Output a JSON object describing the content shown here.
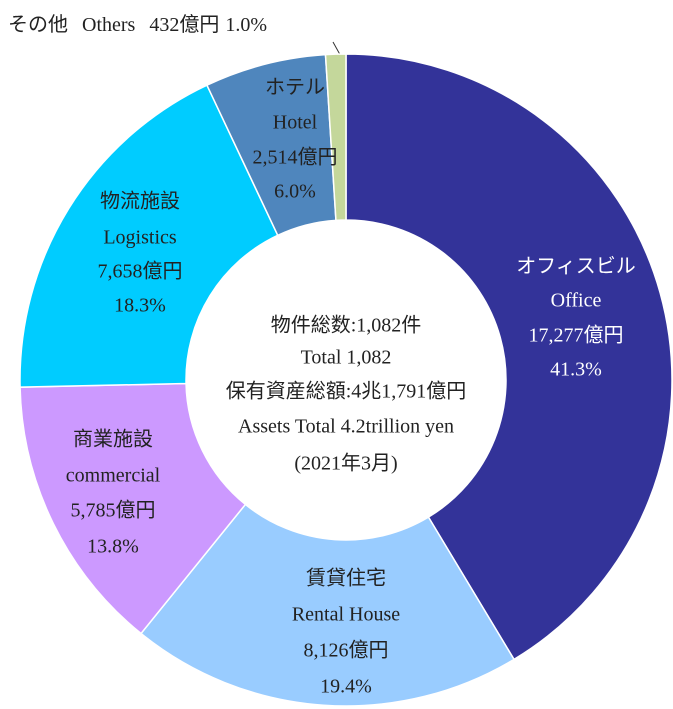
{
  "chart_data": {
    "type": "donut",
    "categories": [
      "オフィスビル",
      "賃貸住宅",
      "商業施設",
      "物流施設",
      "ホテル",
      "その他"
    ],
    "categories_en": [
      "Office",
      "Rental House",
      "commercial",
      "Logistics",
      "Hotel",
      "Others"
    ],
    "amount_labels": [
      "17,277億円",
      "8,126億円",
      "5,785億円",
      "7,658億円",
      "2,514億円",
      "432億円"
    ],
    "values": [
      41.3,
      19.4,
      13.8,
      18.3,
      6.0,
      1.0
    ],
    "value_labels": [
      "41.3%",
      "19.4%",
      "13.8%",
      "18.3%",
      "6.0%",
      "1.0%"
    ],
    "colors": [
      "#333399",
      "#99ccff",
      "#cc99ff",
      "#00ccff",
      "#4f86bd",
      "#c4d79b"
    ],
    "center_text": [
      "物件総数:1,082件",
      "Total 1,082",
      "保有資産総額:4兆1,791億円",
      "Assets Total 4.2trillion yen",
      "(2021年3月)"
    ]
  }
}
